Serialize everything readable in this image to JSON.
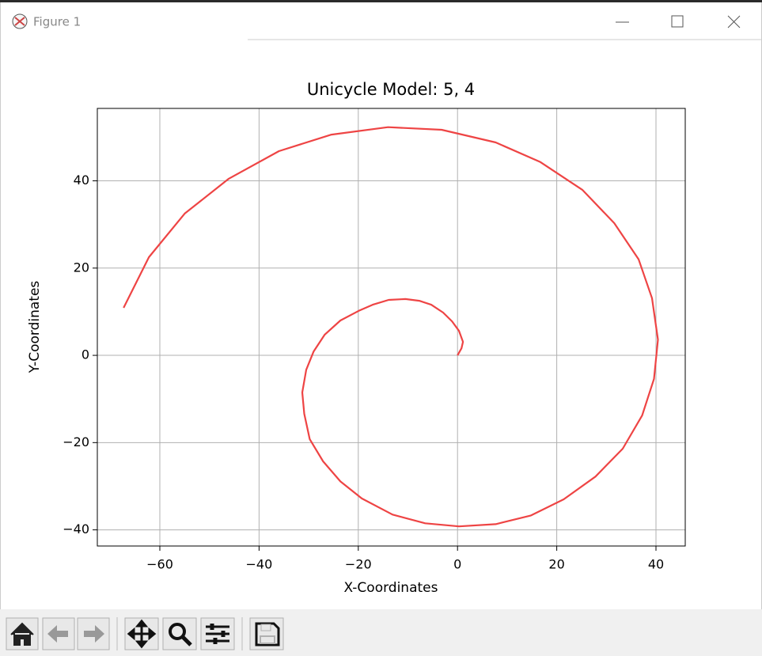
{
  "window": {
    "title": "Figure 1"
  },
  "chart_data": {
    "type": "line",
    "title": "Unicycle Model: 5, 4",
    "x_label": "X-Coordinates",
    "y_label": "Y-Coordinates",
    "color": "#ee4444",
    "grid": true,
    "xlim": [
      -72.6,
      45.9
    ],
    "ylim": [
      -43.7,
      56.6
    ],
    "xticks": [
      {
        "value": -60,
        "label": "−60"
      },
      {
        "value": -40,
        "label": "−40"
      },
      {
        "value": -20,
        "label": "−20"
      },
      0,
      20,
      40
    ],
    "yticks": [
      {
        "value": -40,
        "label": "−40"
      },
      {
        "value": -20,
        "label": "−20"
      },
      0,
      20,
      40
    ],
    "x": [
      0,
      0.8,
      1.1,
      0.3,
      -1.1,
      -2.9,
      -5.3,
      -7.7,
      -10.5,
      -13.9,
      -17.1,
      -19.9,
      -23.6,
      -26.8,
      -29.0,
      -30.5,
      -31.3,
      -30.9,
      -29.8,
      -27.1,
      -23.6,
      -19.3,
      -13.1,
      -6.5,
      0.3,
      7.7,
      14.8,
      21.4,
      27.8,
      33.3,
      37.2,
      39.6,
      40.4,
      39.2,
      36.5,
      31.6,
      25.2,
      16.7,
      7.7,
      -3.2,
      -14.0,
      -25.4,
      -36.0,
      -46.1,
      -55.0,
      -62.2,
      -67.3
    ],
    "values": [
      0,
      1.6,
      3.1,
      5.6,
      7.8,
      9.8,
      11.6,
      12.5,
      12.9,
      12.7,
      11.6,
      10.2,
      8.0,
      4.7,
      0.9,
      -3.3,
      -8.5,
      -13.4,
      -19.2,
      -24.3,
      -28.9,
      -32.8,
      -36.5,
      -38.5,
      -39.2,
      -38.7,
      -36.7,
      -33.0,
      -27.8,
      -21.4,
      -13.8,
      -5.4,
      3.6,
      13.1,
      22.0,
      30.3,
      37.9,
      44.3,
      48.8,
      51.7,
      52.3,
      50.6,
      46.8,
      40.5,
      32.5,
      22.5,
      10.9
    ]
  }
}
